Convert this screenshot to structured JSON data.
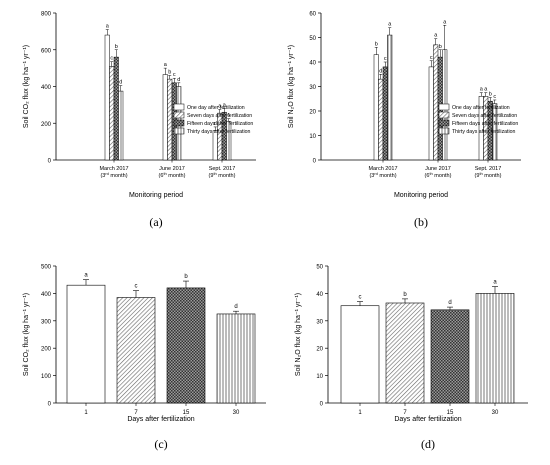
{
  "panels": [
    {
      "id": "a",
      "letter": "(a)",
      "type": "bar",
      "ylabel": "Soil CO₂ flux (kg ha⁻¹ yr⁻¹)",
      "xlabel": "Monitoring period",
      "ylim": [
        0,
        800
      ],
      "yticks": [
        0,
        200,
        400,
        600,
        800
      ],
      "categories": [
        [
          "March 2017",
          "(3rd month)"
        ],
        [
          "June 2017",
          "(6th month)"
        ],
        [
          "Sept. 2017",
          "(9th month)"
        ]
      ],
      "series": [
        {
          "name": "One day after fertilization",
          "pattern": "white",
          "values": [
            680,
            465,
            160
          ],
          "errors": [
            30,
            35,
            20
          ],
          "letters": [
            "a",
            "a",
            "d"
          ]
        },
        {
          "name": "Seven days after fertilization",
          "pattern": "stripeA",
          "values": [
            510,
            440,
            255
          ],
          "errors": [
            25,
            20,
            20
          ],
          "letters": [
            "c",
            "b",
            "a"
          ]
        },
        {
          "name": "Fifteen days after fertilization",
          "pattern": "cross",
          "values": [
            560,
            420,
            260
          ],
          "errors": [
            40,
            25,
            20
          ],
          "letters": [
            "b",
            "c",
            "a"
          ]
        },
        {
          "name": "Thirty days after fertilization",
          "pattern": "vert",
          "values": [
            375,
            400,
            210
          ],
          "errors": [
            30,
            20,
            15
          ],
          "letters": [
            "d",
            "d",
            "c"
          ]
        }
      ],
      "legend": "top-right"
    },
    {
      "id": "b",
      "letter": "(b)",
      "type": "bar",
      "ylabel": "Soil N₂O flux (kg ha⁻¹ yr⁻¹)",
      "xlabel": "Monitoring period",
      "ylim": [
        0,
        60
      ],
      "yticks": [
        0,
        10,
        20,
        30,
        40,
        50,
        60
      ],
      "categories": [
        [
          "March 2017",
          "(3rd month)"
        ],
        [
          "June 2017",
          "(6th month)"
        ],
        [
          "Sept. 2017",
          "(9th month)"
        ]
      ],
      "series": [
        {
          "name": "One day after fertilization",
          "pattern": "white",
          "values": [
            43,
            38,
            26
          ],
          "errors": [
            3,
            2.5,
            1.5
          ],
          "letters": [
            "b",
            "c",
            "a"
          ]
        },
        {
          "name": "Seven days after fertilization",
          "pattern": "stripeA",
          "values": [
            33,
            47,
            26
          ],
          "errors": [
            2,
            2.5,
            1.5
          ],
          "letters": [
            "d",
            "a",
            "a"
          ]
        },
        {
          "name": "Fifteen days after fertilization",
          "pattern": "cross",
          "values": [
            38,
            42,
            24
          ],
          "errors": [
            2,
            3,
            1.5
          ],
          "letters": [
            "c",
            "b",
            "b"
          ]
        },
        {
          "name": "Thirty days after fertilization",
          "pattern": "vert",
          "values": [
            51,
            45,
            23
          ],
          "errors": [
            3,
            10,
            1.5
          ],
          "letters": [
            "a",
            "a",
            "c"
          ]
        }
      ],
      "legend": "top-right"
    },
    {
      "id": "c",
      "letter": "(c)",
      "type": "bar",
      "ylabel": "Soil CO₂ flux (kg ha⁻¹ yr⁻¹)",
      "xlabel": "Days after fertilization",
      "ylim": [
        0,
        500
      ],
      "yticks": [
        0,
        100,
        200,
        300,
        400,
        500
      ],
      "categories": [
        "1",
        "7",
        "15",
        "30"
      ],
      "values": [
        430,
        385,
        420,
        325
      ],
      "errors": [
        20,
        25,
        25,
        10
      ],
      "letters": [
        "a",
        "c",
        "b",
        "d"
      ],
      "patterns": [
        "white",
        "stripeA",
        "cross",
        "vert"
      ]
    },
    {
      "id": "d",
      "letter": "(d)",
      "type": "bar",
      "ylabel": "Soil N₂O flux (kg ha⁻¹ yr⁻¹)",
      "xlabel": "Days after fertilization",
      "ylim": [
        0,
        50
      ],
      "yticks": [
        0,
        10,
        20,
        30,
        40,
        50
      ],
      "categories": [
        "1",
        "7",
        "15",
        "30"
      ],
      "values": [
        35.5,
        36.5,
        34,
        40
      ],
      "errors": [
        1.5,
        1.5,
        1,
        2.5
      ],
      "letters": [
        "c",
        "b",
        "d",
        "a"
      ],
      "patterns": [
        "white",
        "stripeA",
        "cross",
        "vert"
      ]
    }
  ],
  "chart_data": [
    {
      "type": "bar",
      "xlabel": "Monitoring period",
      "ylabel": "Soil CO2 flux (kg ha-1 yr-1)",
      "categories": [
        "March 2017 (3rd month)",
        "June 2017 (6th month)",
        "Sept. 2017 (9th month)"
      ],
      "ylim": [
        0,
        800
      ],
      "series": [
        {
          "name": "One day after fertilization",
          "values": [
            680,
            465,
            160
          ]
        },
        {
          "name": "Seven days after fertilization",
          "values": [
            510,
            440,
            255
          ]
        },
        {
          "name": "Fifteen days after fertilization",
          "values": [
            560,
            420,
            260
          ]
        },
        {
          "name": "Thirty days after fertilization",
          "values": [
            375,
            400,
            210
          ]
        }
      ]
    },
    {
      "type": "bar",
      "xlabel": "Monitoring period",
      "ylabel": "Soil N2O flux (kg ha-1 yr-1)",
      "categories": [
        "March 2017 (3rd month)",
        "June 2017 (6th month)",
        "Sept. 2017 (9th month)"
      ],
      "ylim": [
        0,
        60
      ],
      "series": [
        {
          "name": "One day after fertilization",
          "values": [
            43,
            38,
            26
          ]
        },
        {
          "name": "Seven days after fertilization",
          "values": [
            33,
            47,
            26
          ]
        },
        {
          "name": "Fifteen days after fertilization",
          "values": [
            38,
            42,
            24
          ]
        },
        {
          "name": "Thirty days after fertilization",
          "values": [
            51,
            45,
            23
          ]
        }
      ]
    },
    {
      "type": "bar",
      "xlabel": "Days after fertilization",
      "ylabel": "Soil CO2 flux (kg ha-1 yr-1)",
      "categories": [
        "1",
        "7",
        "15",
        "30"
      ],
      "values": [
        430,
        385,
        420,
        325
      ],
      "ylim": [
        0,
        500
      ]
    },
    {
      "type": "bar",
      "xlabel": "Days after fertilization",
      "ylabel": "Soil N2O flux (kg ha-1 yr-1)",
      "categories": [
        "1",
        "7",
        "15",
        "30"
      ],
      "values": [
        35.5,
        36.5,
        34,
        40
      ],
      "ylim": [
        0,
        50
      ]
    }
  ]
}
